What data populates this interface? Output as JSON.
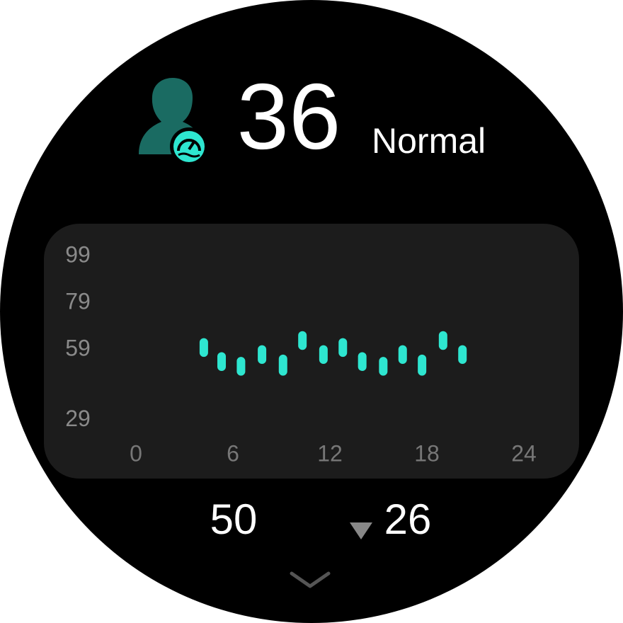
{
  "header": {
    "value": "36",
    "status": "Normal"
  },
  "footer": {
    "left": "50",
    "right": "26"
  },
  "chart_data": {
    "type": "range-bar",
    "x": [
      4.2,
      5.3,
      6.5,
      7.8,
      9.1,
      10.3,
      11.6,
      12.8,
      14.0,
      15.3,
      16.5,
      17.7,
      19.0,
      20.2
    ],
    "low": [
      56,
      50,
      48,
      53,
      48,
      59,
      53,
      56,
      50,
      48,
      53,
      48,
      59,
      53
    ],
    "high": [
      64,
      58,
      56,
      61,
      57,
      67,
      61,
      64,
      58,
      56,
      61,
      57,
      67,
      61
    ],
    "color": "#2ee6d0",
    "xlim": [
      0,
      24
    ],
    "xticks": [
      0,
      6,
      12,
      18,
      24
    ],
    "ylim": [
      24,
      105
    ],
    "yticks": [
      29,
      59,
      79,
      99
    ]
  }
}
